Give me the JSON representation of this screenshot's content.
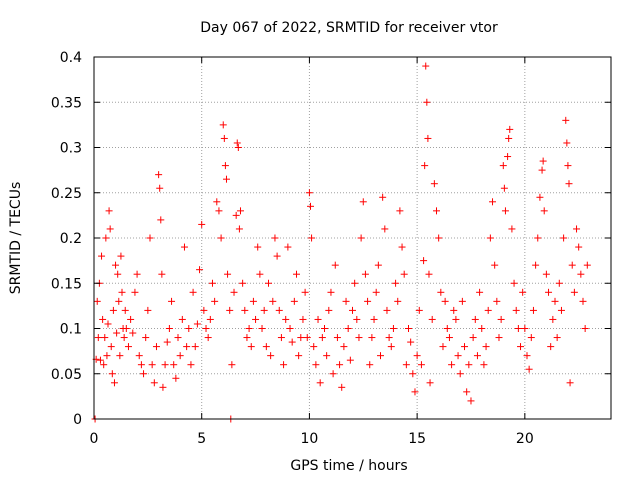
{
  "chart_data": {
    "type": "scatter",
    "title": "Day 067 of 2022, SRMTID for receiver vtor",
    "xlabel": "GPS time / hours",
    "ylabel": "SRMTID / TECUs",
    "xlim": [
      0,
      24
    ],
    "ylim": [
      0,
      0.4
    ],
    "xticks": [
      0,
      5,
      10,
      15,
      20
    ],
    "yticks": [
      0,
      0.05,
      0.1,
      0.15,
      0.2,
      0.25,
      0.3,
      0.35,
      0.4
    ],
    "xtick_labels": [
      "0",
      "5",
      "10",
      "15",
      "20"
    ],
    "ytick_labels": [
      "0",
      "0.05",
      "0.1",
      "0.15",
      "0.2",
      "0.25",
      "0.3",
      "0.35",
      "0.4"
    ],
    "grid": true,
    "marker": "+",
    "color": "#ff0000",
    "series": [
      {
        "name": "SRMTID",
        "points": [
          [
            0.05,
            0.0
          ],
          [
            0.1,
            0.066
          ],
          [
            0.15,
            0.13
          ],
          [
            0.2,
            0.09
          ],
          [
            0.25,
            0.15
          ],
          [
            0.3,
            0.065
          ],
          [
            0.35,
            0.18
          ],
          [
            0.4,
            0.11
          ],
          [
            0.45,
            0.06
          ],
          [
            0.5,
            0.09
          ],
          [
            0.55,
            0.2
          ],
          [
            0.6,
            0.07
          ],
          [
            0.65,
            0.105
          ],
          [
            0.7,
            0.23
          ],
          [
            0.75,
            0.21
          ],
          [
            0.8,
            0.08
          ],
          [
            0.85,
            0.05
          ],
          [
            0.9,
            0.12
          ],
          [
            0.95,
            0.04
          ],
          [
            1.0,
            0.17
          ],
          [
            1.05,
            0.095
          ],
          [
            1.1,
            0.16
          ],
          [
            1.15,
            0.13
          ],
          [
            1.2,
            0.07
          ],
          [
            1.25,
            0.18
          ],
          [
            1.3,
            0.14
          ],
          [
            1.35,
            0.1
          ],
          [
            1.4,
            0.09
          ],
          [
            1.45,
            0.12
          ],
          [
            1.5,
            0.1
          ],
          [
            1.6,
            0.08
          ],
          [
            1.7,
            0.11
          ],
          [
            1.8,
            0.095
          ],
          [
            1.9,
            0.14
          ],
          [
            2.0,
            0.16
          ],
          [
            2.1,
            0.07
          ],
          [
            2.2,
            0.06
          ],
          [
            2.3,
            0.05
          ],
          [
            2.4,
            0.09
          ],
          [
            2.5,
            0.12
          ],
          [
            2.6,
            0.2
          ],
          [
            2.7,
            0.06
          ],
          [
            2.8,
            0.04
          ],
          [
            2.9,
            0.08
          ],
          [
            3.0,
            0.27
          ],
          [
            3.05,
            0.255
          ],
          [
            3.1,
            0.22
          ],
          [
            3.15,
            0.16
          ],
          [
            3.2,
            0.035
          ],
          [
            3.3,
            0.06
          ],
          [
            3.4,
            0.085
          ],
          [
            3.5,
            0.1
          ],
          [
            3.6,
            0.13
          ],
          [
            3.7,
            0.06
          ],
          [
            3.8,
            0.045
          ],
          [
            3.9,
            0.09
          ],
          [
            4.0,
            0.07
          ],
          [
            4.1,
            0.11
          ],
          [
            4.2,
            0.19
          ],
          [
            4.3,
            0.08
          ],
          [
            4.4,
            0.1
          ],
          [
            4.5,
            0.06
          ],
          [
            4.6,
            0.14
          ],
          [
            4.7,
            0.08
          ],
          [
            4.8,
            0.105
          ],
          [
            4.9,
            0.165
          ],
          [
            5.0,
            0.215
          ],
          [
            5.1,
            0.12
          ],
          [
            5.2,
            0.1
          ],
          [
            5.3,
            0.09
          ],
          [
            5.4,
            0.11
          ],
          [
            5.5,
            0.15
          ],
          [
            5.6,
            0.13
          ],
          [
            5.7,
            0.24
          ],
          [
            5.8,
            0.23
          ],
          [
            5.9,
            0.2
          ],
          [
            6.0,
            0.325
          ],
          [
            6.05,
            0.31
          ],
          [
            6.1,
            0.28
          ],
          [
            6.15,
            0.265
          ],
          [
            6.2,
            0.16
          ],
          [
            6.3,
            0.12
          ],
          [
            6.35,
            0.0
          ],
          [
            6.4,
            0.06
          ],
          [
            6.5,
            0.14
          ],
          [
            6.6,
            0.225
          ],
          [
            6.65,
            0.305
          ],
          [
            6.7,
            0.3
          ],
          [
            6.75,
            0.21
          ],
          [
            6.8,
            0.23
          ],
          [
            6.9,
            0.15
          ],
          [
            7.0,
            0.12
          ],
          [
            7.1,
            0.09
          ],
          [
            7.2,
            0.1
          ],
          [
            7.3,
            0.08
          ],
          [
            7.4,
            0.13
          ],
          [
            7.5,
            0.11
          ],
          [
            7.6,
            0.19
          ],
          [
            7.7,
            0.16
          ],
          [
            7.8,
            0.1
          ],
          [
            7.9,
            0.12
          ],
          [
            8.0,
            0.08
          ],
          [
            8.1,
            0.15
          ],
          [
            8.2,
            0.07
          ],
          [
            8.3,
            0.13
          ],
          [
            8.4,
            0.2
          ],
          [
            8.5,
            0.18
          ],
          [
            8.6,
            0.12
          ],
          [
            8.7,
            0.09
          ],
          [
            8.8,
            0.06
          ],
          [
            8.9,
            0.11
          ],
          [
            9.0,
            0.19
          ],
          [
            9.1,
            0.1
          ],
          [
            9.2,
            0.085
          ],
          [
            9.3,
            0.13
          ],
          [
            9.4,
            0.16
          ],
          [
            9.5,
            0.07
          ],
          [
            9.6,
            0.09
          ],
          [
            9.7,
            0.11
          ],
          [
            9.8,
            0.14
          ],
          [
            9.9,
            0.09
          ],
          [
            10.0,
            0.25
          ],
          [
            10.05,
            0.235
          ],
          [
            10.1,
            0.2
          ],
          [
            10.2,
            0.08
          ],
          [
            10.3,
            0.06
          ],
          [
            10.4,
            0.11
          ],
          [
            10.5,
            0.04
          ],
          [
            10.6,
            0.09
          ],
          [
            10.7,
            0.1
          ],
          [
            10.8,
            0.07
          ],
          [
            10.9,
            0.12
          ],
          [
            11.0,
            0.14
          ],
          [
            11.1,
            0.05
          ],
          [
            11.2,
            0.17
          ],
          [
            11.3,
            0.09
          ],
          [
            11.4,
            0.06
          ],
          [
            11.5,
            0.035
          ],
          [
            11.6,
            0.08
          ],
          [
            11.7,
            0.13
          ],
          [
            11.8,
            0.1
          ],
          [
            11.9,
            0.065
          ],
          [
            12.0,
            0.12
          ],
          [
            12.1,
            0.15
          ],
          [
            12.2,
            0.11
          ],
          [
            12.3,
            0.09
          ],
          [
            12.4,
            0.2
          ],
          [
            12.5,
            0.24
          ],
          [
            12.6,
            0.16
          ],
          [
            12.7,
            0.13
          ],
          [
            12.8,
            0.06
          ],
          [
            12.9,
            0.09
          ],
          [
            13.0,
            0.11
          ],
          [
            13.1,
            0.14
          ],
          [
            13.2,
            0.17
          ],
          [
            13.3,
            0.07
          ],
          [
            13.4,
            0.245
          ],
          [
            13.5,
            0.21
          ],
          [
            13.6,
            0.12
          ],
          [
            13.7,
            0.09
          ],
          [
            13.8,
            0.08
          ],
          [
            13.9,
            0.1
          ],
          [
            14.0,
            0.15
          ],
          [
            14.1,
            0.13
          ],
          [
            14.2,
            0.23
          ],
          [
            14.3,
            0.19
          ],
          [
            14.4,
            0.16
          ],
          [
            14.5,
            0.06
          ],
          [
            14.6,
            0.1
          ],
          [
            14.7,
            0.085
          ],
          [
            14.8,
            0.05
          ],
          [
            14.9,
            0.03
          ],
          [
            15.0,
            0.07
          ],
          [
            15.1,
            0.12
          ],
          [
            15.2,
            0.06
          ],
          [
            15.3,
            0.175
          ],
          [
            15.35,
            0.28
          ],
          [
            15.4,
            0.39
          ],
          [
            15.45,
            0.35
          ],
          [
            15.5,
            0.31
          ],
          [
            15.55,
            0.16
          ],
          [
            15.6,
            0.04
          ],
          [
            15.7,
            0.11
          ],
          [
            15.8,
            0.26
          ],
          [
            15.9,
            0.23
          ],
          [
            16.0,
            0.2
          ],
          [
            16.1,
            0.14
          ],
          [
            16.2,
            0.08
          ],
          [
            16.3,
            0.13
          ],
          [
            16.4,
            0.1
          ],
          [
            16.5,
            0.09
          ],
          [
            16.6,
            0.06
          ],
          [
            16.7,
            0.12
          ],
          [
            16.8,
            0.11
          ],
          [
            16.9,
            0.07
          ],
          [
            17.0,
            0.05
          ],
          [
            17.1,
            0.13
          ],
          [
            17.2,
            0.08
          ],
          [
            17.3,
            0.03
          ],
          [
            17.4,
            0.06
          ],
          [
            17.5,
            0.02
          ],
          [
            17.6,
            0.09
          ],
          [
            17.7,
            0.11
          ],
          [
            17.8,
            0.07
          ],
          [
            17.9,
            0.14
          ],
          [
            18.0,
            0.1
          ],
          [
            18.1,
            0.06
          ],
          [
            18.2,
            0.08
          ],
          [
            18.3,
            0.12
          ],
          [
            18.4,
            0.2
          ],
          [
            18.5,
            0.24
          ],
          [
            18.6,
            0.17
          ],
          [
            18.7,
            0.13
          ],
          [
            18.8,
            0.09
          ],
          [
            18.9,
            0.11
          ],
          [
            19.0,
            0.28
          ],
          [
            19.05,
            0.255
          ],
          [
            19.1,
            0.23
          ],
          [
            19.2,
            0.29
          ],
          [
            19.25,
            0.31
          ],
          [
            19.3,
            0.32
          ],
          [
            19.4,
            0.21
          ],
          [
            19.5,
            0.15
          ],
          [
            19.6,
            0.12
          ],
          [
            19.7,
            0.1
          ],
          [
            19.8,
            0.08
          ],
          [
            19.9,
            0.14
          ],
          [
            20.0,
            0.1
          ],
          [
            20.1,
            0.07
          ],
          [
            20.2,
            0.055
          ],
          [
            20.3,
            0.09
          ],
          [
            20.4,
            0.12
          ],
          [
            20.5,
            0.17
          ],
          [
            20.6,
            0.2
          ],
          [
            20.7,
            0.245
          ],
          [
            20.8,
            0.275
          ],
          [
            20.85,
            0.285
          ],
          [
            20.9,
            0.23
          ],
          [
            21.0,
            0.16
          ],
          [
            21.1,
            0.14
          ],
          [
            21.2,
            0.08
          ],
          [
            21.3,
            0.11
          ],
          [
            21.4,
            0.13
          ],
          [
            21.5,
            0.09
          ],
          [
            21.6,
            0.15
          ],
          [
            21.7,
            0.12
          ],
          [
            21.8,
            0.2
          ],
          [
            21.9,
            0.33
          ],
          [
            21.95,
            0.305
          ],
          [
            22.0,
            0.28
          ],
          [
            22.05,
            0.26
          ],
          [
            22.1,
            0.04
          ],
          [
            22.2,
            0.17
          ],
          [
            22.3,
            0.14
          ],
          [
            22.4,
            0.21
          ],
          [
            22.5,
            0.19
          ],
          [
            22.6,
            0.16
          ],
          [
            22.7,
            0.13
          ],
          [
            22.8,
            0.1
          ],
          [
            22.9,
            0.17
          ]
        ]
      }
    ]
  }
}
